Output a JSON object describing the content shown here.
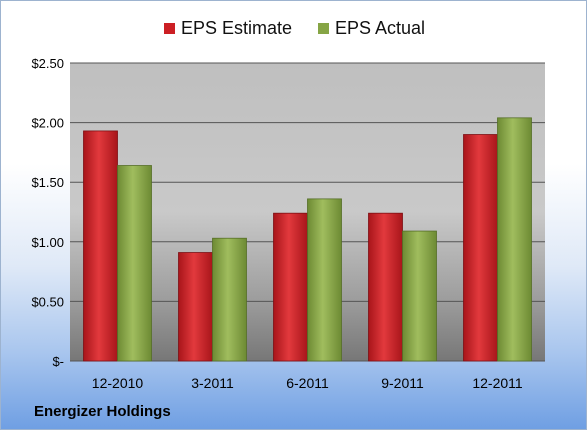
{
  "chart_data": {
    "type": "bar",
    "categories": [
      "12-2010",
      "3-2011",
      "6-2011",
      "9-2011",
      "12-2011"
    ],
    "series": [
      {
        "name": "EPS Estimate",
        "values": [
          1.93,
          0.91,
          1.24,
          1.24,
          1.9
        ],
        "color": "#cc1f24"
      },
      {
        "name": "EPS Actual",
        "values": [
          1.64,
          1.03,
          1.36,
          1.09,
          2.04
        ],
        "color": "#86a545"
      }
    ],
    "ylim": [
      0,
      2.5
    ],
    "yticks": [
      0,
      0.5,
      1.0,
      1.5,
      2.0,
      2.5
    ],
    "ytick_labels": [
      "$-",
      "$0.50",
      "$1.00",
      "$1.50",
      "$2.00",
      "$2.50"
    ],
    "grid": true,
    "legend_position": "top"
  },
  "footer": {
    "company": "Energizer Holdings"
  }
}
